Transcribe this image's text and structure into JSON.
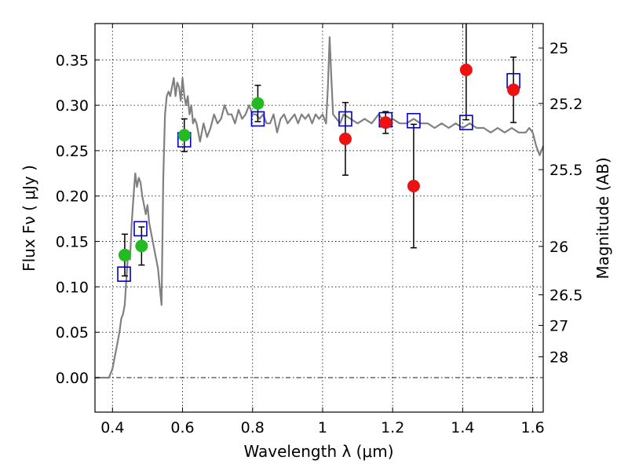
{
  "chart_data": {
    "type": "scatter",
    "xlabel": "Wavelength  λ (μm)",
    "ylabel": "Flux  Fν  ( μJy )",
    "ylabel_right": "Magnitude (AB)",
    "xlim": [
      0.35,
      1.63
    ],
    "ylim": [
      -0.038,
      0.39
    ],
    "grid": true,
    "x_ticks": [
      {
        "value": 0.4,
        "label": "0.4"
      },
      {
        "value": 0.6,
        "label": "0.6"
      },
      {
        "value": 0.8,
        "label": "0.8"
      },
      {
        "value": 1.0,
        "label": "1"
      },
      {
        "value": 1.2,
        "label": "1.2"
      },
      {
        "value": 1.4,
        "label": "1.4"
      },
      {
        "value": 1.6,
        "label": "1.6"
      }
    ],
    "y_ticks": [
      {
        "value": 0.0,
        "label": "0.00"
      },
      {
        "value": 0.05,
        "label": "0.05"
      },
      {
        "value": 0.1,
        "label": "0.10"
      },
      {
        "value": 0.15,
        "label": "0.15"
      },
      {
        "value": 0.2,
        "label": "0.20"
      },
      {
        "value": 0.25,
        "label": "0.25"
      },
      {
        "value": 0.3,
        "label": "0.30"
      },
      {
        "value": 0.35,
        "label": "0.35"
      }
    ],
    "right_ticks": [
      {
        "value": 25,
        "label": "25"
      },
      {
        "value": 25.2,
        "label": "25.2"
      },
      {
        "value": 25.5,
        "label": "25.5"
      },
      {
        "value": 26,
        "label": "26"
      },
      {
        "value": 26.5,
        "label": "26.5"
      },
      {
        "value": 27,
        "label": "27"
      },
      {
        "value": 28,
        "label": "28"
      }
    ],
    "series": [
      {
        "type": "line",
        "color": "#808080",
        "x": [
          0.35,
          0.39,
          0.4,
          0.41,
          0.42,
          0.425,
          0.43,
          0.435,
          0.44,
          0.445,
          0.45,
          0.455,
          0.46,
          0.465,
          0.47,
          0.475,
          0.48,
          0.485,
          0.49,
          0.495,
          0.5,
          0.505,
          0.51,
          0.515,
          0.52,
          0.525,
          0.53,
          0.535,
          0.54,
          0.545,
          0.55,
          0.555,
          0.56,
          0.565,
          0.57,
          0.575,
          0.58,
          0.585,
          0.59,
          0.595,
          0.6,
          0.605,
          0.61,
          0.615,
          0.62,
          0.625,
          0.63,
          0.635,
          0.64,
          0.65,
          0.66,
          0.67,
          0.68,
          0.69,
          0.7,
          0.71,
          0.72,
          0.73,
          0.74,
          0.75,
          0.76,
          0.77,
          0.78,
          0.79,
          0.8,
          0.81,
          0.82,
          0.83,
          0.84,
          0.85,
          0.86,
          0.87,
          0.88,
          0.89,
          0.9,
          0.91,
          0.92,
          0.93,
          0.94,
          0.95,
          0.96,
          0.97,
          0.98,
          0.99,
          1.0,
          1.01,
          1.015,
          1.02,
          1.025,
          1.03,
          1.04,
          1.05,
          1.06,
          1.08,
          1.1,
          1.12,
          1.14,
          1.16,
          1.18,
          1.2,
          1.22,
          1.24,
          1.26,
          1.28,
          1.3,
          1.32,
          1.34,
          1.36,
          1.38,
          1.4,
          1.42,
          1.44,
          1.46,
          1.48,
          1.5,
          1.52,
          1.54,
          1.56,
          1.58,
          1.59,
          1.6,
          1.61,
          1.62,
          1.63
        ],
        "y": [
          0.0,
          0.0,
          0.01,
          0.03,
          0.05,
          0.065,
          0.07,
          0.08,
          0.11,
          0.14,
          0.13,
          0.17,
          0.2,
          0.225,
          0.21,
          0.22,
          0.215,
          0.2,
          0.19,
          0.18,
          0.19,
          0.17,
          0.16,
          0.15,
          0.14,
          0.13,
          0.12,
          0.1,
          0.08,
          0.22,
          0.29,
          0.31,
          0.315,
          0.31,
          0.32,
          0.33,
          0.31,
          0.325,
          0.32,
          0.305,
          0.33,
          0.31,
          0.3,
          0.31,
          0.29,
          0.3,
          0.28,
          0.285,
          0.28,
          0.26,
          0.28,
          0.265,
          0.275,
          0.29,
          0.28,
          0.285,
          0.3,
          0.29,
          0.29,
          0.28,
          0.295,
          0.285,
          0.29,
          0.3,
          0.29,
          0.29,
          0.285,
          0.29,
          0.28,
          0.28,
          0.29,
          0.27,
          0.285,
          0.29,
          0.28,
          0.285,
          0.29,
          0.28,
          0.29,
          0.285,
          0.29,
          0.28,
          0.29,
          0.285,
          0.29,
          0.28,
          0.32,
          0.375,
          0.33,
          0.29,
          0.285,
          0.28,
          0.29,
          0.285,
          0.28,
          0.285,
          0.28,
          0.29,
          0.28,
          0.285,
          0.28,
          0.28,
          0.285,
          0.28,
          0.28,
          0.275,
          0.28,
          0.275,
          0.28,
          0.275,
          0.28,
          0.275,
          0.275,
          0.27,
          0.275,
          0.27,
          0.275,
          0.27,
          0.27,
          0.275,
          0.27,
          0.255,
          0.245,
          0.255
        ]
      },
      {
        "type": "scatter",
        "marker": "circle",
        "color": "#22bb22",
        "x": [
          0.435,
          0.483,
          0.605,
          0.815
        ],
        "y": [
          0.135,
          0.145,
          0.267,
          0.302
        ],
        "yerr": [
          0.023,
          0.021,
          0.018,
          0.02
        ]
      },
      {
        "type": "scatter",
        "marker": "circle",
        "color": "#ee1111",
        "x": [
          1.065,
          1.18,
          1.26,
          1.41,
          1.545
        ],
        "y": [
          0.263,
          0.281,
          0.211,
          0.339,
          0.317
        ],
        "yerr": [
          0.04,
          0.012,
          0.068,
          0.055,
          0.036
        ]
      },
      {
        "type": "scatter",
        "marker": "square",
        "color": "#0000cc",
        "x": [
          0.433,
          0.48,
          0.605,
          0.815,
          1.065,
          1.18,
          1.26,
          1.41,
          1.545
        ],
        "y": [
          0.114,
          0.164,
          0.262,
          0.285,
          0.285,
          0.284,
          0.283,
          0.281,
          0.327
        ]
      }
    ]
  }
}
